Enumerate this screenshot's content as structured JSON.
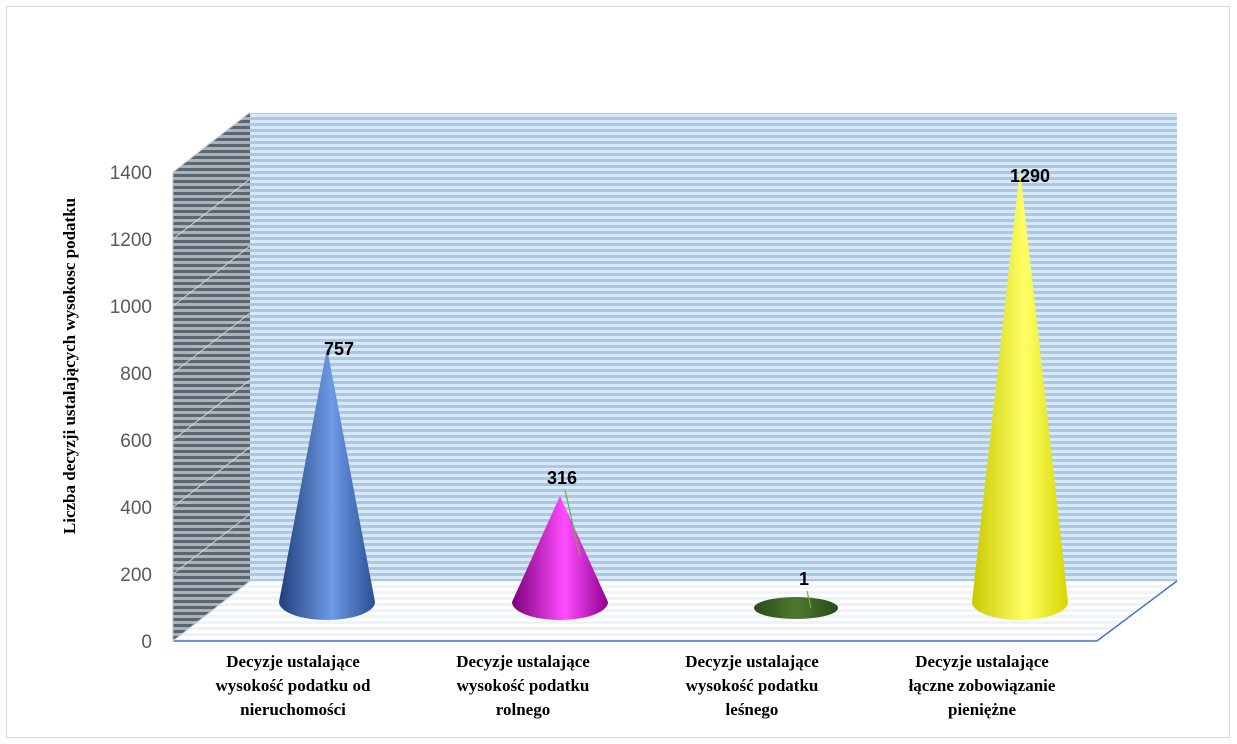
{
  "chart_data": {
    "type": "bar",
    "shape": "3d-cone",
    "ylabel": "Liczba decyzji ustalających wysokosc podatku",
    "ylim": [
      0,
      1400
    ],
    "yticks": [
      "0",
      "200",
      "400",
      "600",
      "800",
      "1000",
      "1200",
      "1400"
    ],
    "categories": [
      "Decyzje ustalające wysokość podatku od nieruchomości",
      "Decyzje ustalające wysokość podatku rolnego",
      "Decyzje ustalające wysokość podatku leśnego",
      "Decyzje ustalające łączne zobowiązanie pieniężne"
    ],
    "values": [
      757,
      316,
      1,
      1290
    ],
    "data_labels": [
      "757",
      "316",
      "1",
      "1290"
    ],
    "colors": [
      "#4472c4",
      "#cc00cc",
      "#375623",
      "#ffff00"
    ],
    "grid": true,
    "legend": "none"
  }
}
